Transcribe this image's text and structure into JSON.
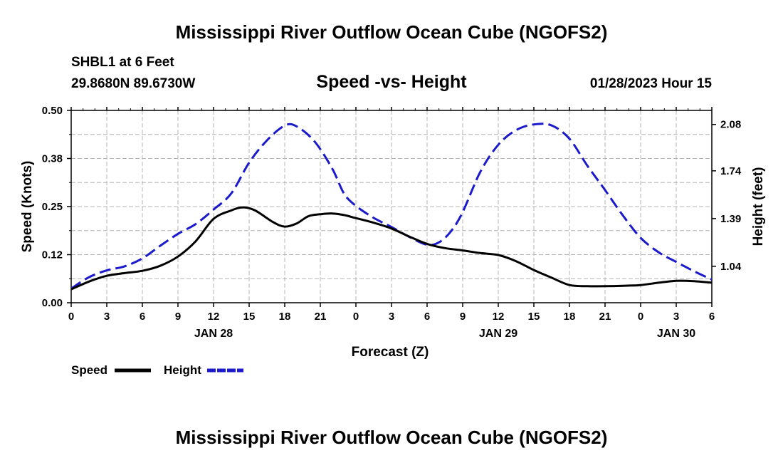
{
  "header": {
    "title": "Mississippi River Outflow Ocean Cube (NGOFS2)",
    "station": "SHBL1 at 6 Feet",
    "coordinates": "29.8680N  89.6730W",
    "subtitle": "Speed -vs- Height",
    "datetime": "01/28/2023 Hour 15"
  },
  "footer": {
    "title": "Mississippi River Outflow Ocean Cube (NGOFS2)"
  },
  "legend": {
    "speed_label": "Speed",
    "height_label": "Height"
  },
  "chart_data": {
    "type": "line",
    "title": "Speed -vs- Height",
    "xlabel": "Forecast (Z)",
    "ylabel": "Speed (Knots)",
    "y2label": "Height (feet)",
    "xlim": [
      0,
      54
    ],
    "ylim": [
      0,
      0.5
    ],
    "y2lim": [
      0.773,
      2.183
    ],
    "grid": true,
    "x_ticks": [
      0,
      3,
      6,
      9,
      12,
      15,
      18,
      21,
      24,
      27,
      30,
      33,
      36,
      39,
      42,
      45,
      48,
      51,
      54
    ],
    "x_tick_labels": [
      "0",
      "3",
      "6",
      "9",
      "12",
      "15",
      "18",
      "21",
      "0",
      "3",
      "6",
      "9",
      "12",
      "15",
      "18",
      "21",
      "0",
      "3",
      "6"
    ],
    "date_labels": [
      {
        "x": 12,
        "label": "JAN 28"
      },
      {
        "x": 36,
        "label": "JAN 29"
      },
      {
        "x": 51,
        "label": "JAN 30"
      }
    ],
    "y_ticks": [
      0.0,
      0.125,
      0.25,
      0.375,
      0.5
    ],
    "y_tick_labels": [
      "0.00",
      "0.12",
      "0.25",
      "0.38",
      "0.50"
    ],
    "y2_ticks": [
      1.04,
      1.39,
      1.74,
      2.08
    ],
    "y2_tick_labels": [
      "1.04",
      "1.39",
      "1.74",
      "2.08"
    ],
    "legend_position": "bottom-left",
    "series": [
      {
        "name": "Speed",
        "axis": "left",
        "color": "#000000",
        "style": "solid",
        "x": [
          0,
          1.5,
          3,
          4.5,
          6,
          7.5,
          9,
          10.5,
          12,
          13.5,
          14.5,
          15.5,
          17,
          18,
          19,
          20,
          21,
          22,
          23,
          24,
          25.5,
          27,
          28.5,
          30,
          31.5,
          33,
          34.5,
          36,
          37.5,
          39,
          40.5,
          42,
          43.5,
          45,
          46.5,
          48,
          49.5,
          51,
          52.5,
          54
        ],
        "y": [
          0.035,
          0.055,
          0.07,
          0.077,
          0.083,
          0.096,
          0.12,
          0.16,
          0.218,
          0.24,
          0.248,
          0.24,
          0.21,
          0.198,
          0.206,
          0.225,
          0.23,
          0.232,
          0.228,
          0.22,
          0.208,
          0.193,
          0.172,
          0.153,
          0.142,
          0.136,
          0.129,
          0.124,
          0.108,
          0.085,
          0.065,
          0.046,
          0.043,
          0.043,
          0.044,
          0.046,
          0.052,
          0.057,
          0.056,
          0.052
        ]
      },
      {
        "name": "Height",
        "axis": "right",
        "color": "#1a1acc",
        "style": "dashed",
        "x": [
          0,
          1.5,
          3,
          4.5,
          6,
          7.5,
          9,
          10.5,
          12,
          13.5,
          15,
          16.5,
          18,
          19,
          20.5,
          22,
          23,
          24,
          25.5,
          27,
          28.5,
          30,
          31,
          32,
          33,
          34.5,
          36,
          37.5,
          39,
          40.5,
          42,
          43.5,
          45,
          46.5,
          48,
          49.5,
          51,
          52.5,
          54
        ],
        "y": [
          0.877,
          0.96,
          1.01,
          1.04,
          1.098,
          1.19,
          1.278,
          1.35,
          1.456,
          1.575,
          1.8,
          1.963,
          2.072,
          2.066,
          1.957,
          1.757,
          1.573,
          1.483,
          1.395,
          1.328,
          1.256,
          1.198,
          1.216,
          1.295,
          1.438,
          1.735,
          1.931,
          2.038,
          2.08,
          2.073,
          1.975,
          1.779,
          1.599,
          1.413,
          1.249,
          1.144,
          1.072,
          1.004,
          0.943
        ]
      }
    ]
  }
}
